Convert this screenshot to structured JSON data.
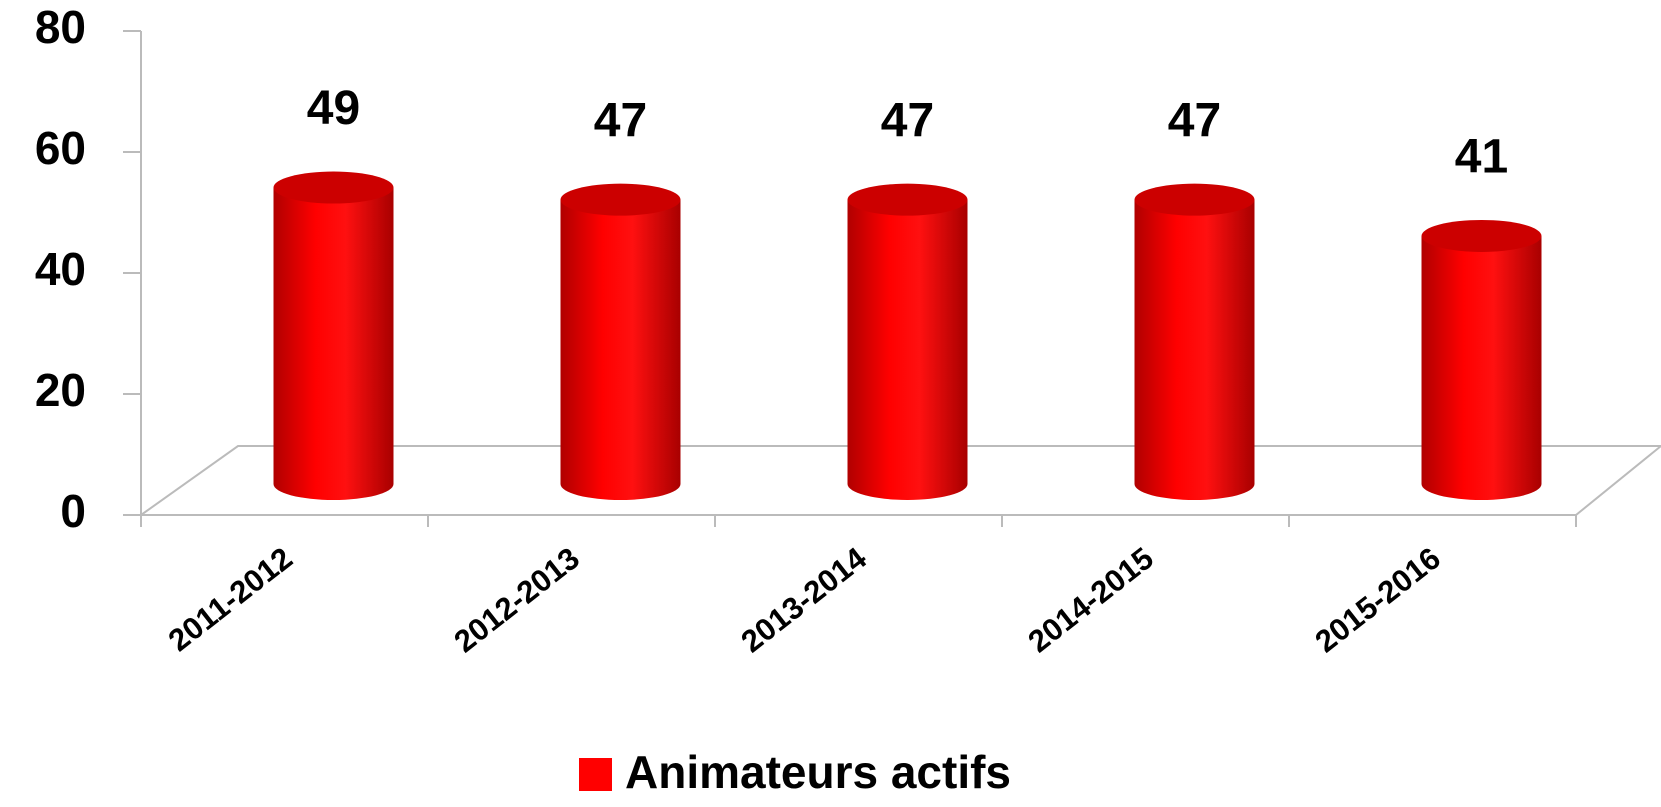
{
  "chart_data": {
    "type": "bar",
    "categories": [
      "2011-2012",
      "2012-2013",
      "2013-2014",
      "2014-2015",
      "2015-2016"
    ],
    "series": [
      {
        "name": "Animateurs actifs",
        "color": "#ff0000",
        "values": [
          49,
          47,
          47,
          47,
          41
        ]
      }
    ],
    "ylim": [
      0,
      80
    ],
    "yticks": [
      0,
      20,
      40,
      60,
      80
    ],
    "legend": "bottom"
  }
}
